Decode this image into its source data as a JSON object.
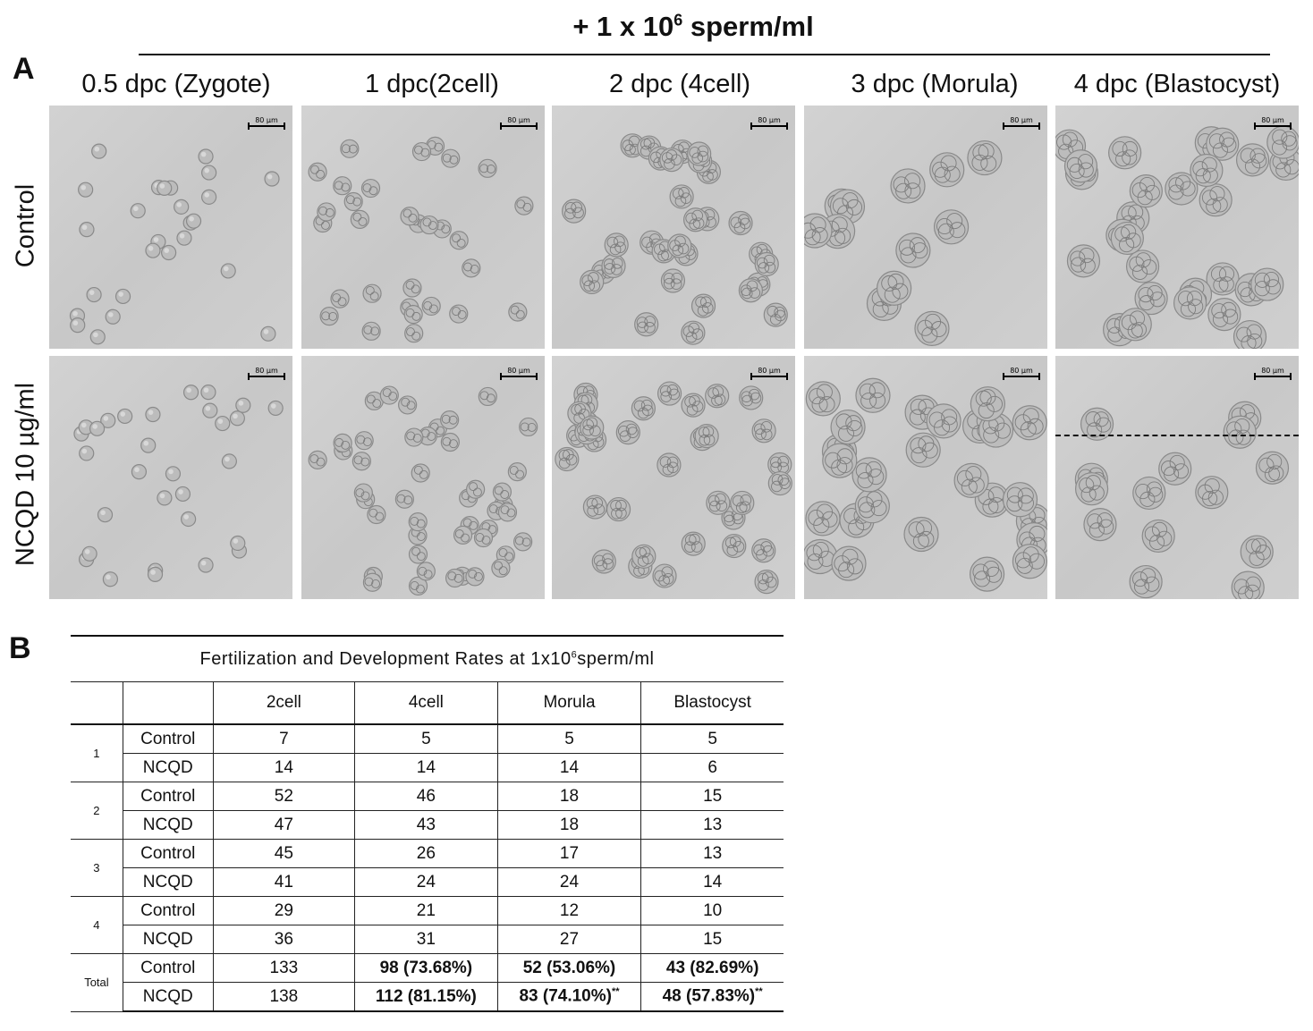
{
  "header": {
    "title_prefix": "+ 1 x 10",
    "title_sup": "6",
    "title_suffix": " sperm/ml"
  },
  "panel_a": {
    "letter": "A",
    "columns": [
      "0.5 dpc (Zygote)",
      "1 dpc(2cell)",
      "2 dpc (4cell)",
      "3 dpc (Morula)",
      "4 dpc (Blastocyst)"
    ],
    "rows": [
      "Control",
      "NCQD 10 µg/ml"
    ],
    "scale_bar_label": "80 µm"
  },
  "panel_b": {
    "letter": "B",
    "table_title_prefix": "Fertilization  and  Development  Rates  at  1x10",
    "table_title_sup": "6",
    "table_title_suffix": "sperm/ml",
    "column_headers": [
      "2cell",
      "4cell",
      "Morula",
      "Blastocyst"
    ],
    "groups": [
      {
        "label": "1",
        "rows": [
          {
            "name": "Control",
            "values": [
              "7",
              "5",
              "5",
              "5"
            ]
          },
          {
            "name": "NCQD",
            "values": [
              "14",
              "14",
              "14",
              "6"
            ]
          }
        ]
      },
      {
        "label": "2",
        "rows": [
          {
            "name": "Control",
            "values": [
              "52",
              "46",
              "18",
              "15"
            ]
          },
          {
            "name": "NCQD",
            "values": [
              "47",
              "43",
              "18",
              "13"
            ]
          }
        ]
      },
      {
        "label": "3",
        "rows": [
          {
            "name": "Control",
            "values": [
              "45",
              "26",
              "17",
              "13"
            ]
          },
          {
            "name": "NCQD",
            "values": [
              "41",
              "24",
              "24",
              "14"
            ]
          }
        ]
      },
      {
        "label": "4",
        "rows": [
          {
            "name": "Control",
            "values": [
              "29",
              "21",
              "12",
              "10"
            ]
          },
          {
            "name": "NCQD",
            "values": [
              "36",
              "31",
              "27",
              "15"
            ]
          }
        ]
      }
    ],
    "total": {
      "label": "Total",
      "rows": [
        {
          "name": "Control",
          "values": [
            "133",
            "98  (73.68%)",
            "52  (53.06%)",
            "43  (82.69%)"
          ],
          "marks": [
            "",
            "",
            "",
            ""
          ]
        },
        {
          "name": "NCQD",
          "values": [
            "138",
            "112  (81.15%)",
            "83  (74.10%)",
            "48  (57.83%)"
          ],
          "marks": [
            "",
            "",
            "**",
            "**"
          ]
        }
      ]
    }
  }
}
